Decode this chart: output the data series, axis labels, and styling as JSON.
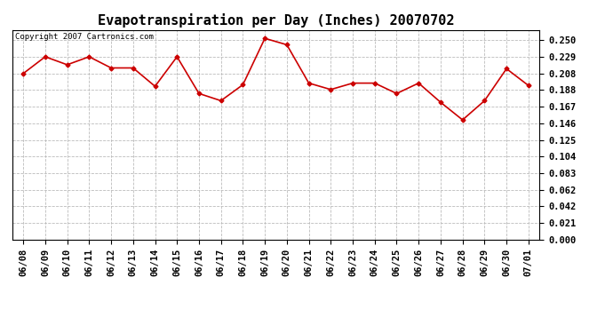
{
  "title": "Evapotranspiration per Day (Inches) 20070702",
  "copyright_text": "Copyright 2007 Cartronics.com",
  "x_labels": [
    "06/08",
    "06/09",
    "06/10",
    "06/11",
    "06/12",
    "06/13",
    "06/14",
    "06/15",
    "06/16",
    "06/17",
    "06/18",
    "06/19",
    "06/20",
    "06/21",
    "06/22",
    "06/23",
    "06/24",
    "06/25",
    "06/26",
    "06/27",
    "06/28",
    "06/29",
    "06/30",
    "07/01"
  ],
  "y_values": [
    0.208,
    0.229,
    0.219,
    0.229,
    0.215,
    0.215,
    0.192,
    0.229,
    0.183,
    0.174,
    0.194,
    0.252,
    0.244,
    0.196,
    0.188,
    0.196,
    0.196,
    0.183,
    0.196,
    0.172,
    0.15,
    0.174,
    0.214,
    0.193
  ],
  "line_color": "#cc0000",
  "marker": "D",
  "marker_size": 2.5,
  "line_width": 1.2,
  "background_color": "#ffffff",
  "grid_color": "#bbbbbb",
  "ylim": [
    0.0,
    0.2625
  ],
  "yticks": [
    0.0,
    0.021,
    0.042,
    0.062,
    0.083,
    0.104,
    0.125,
    0.146,
    0.167,
    0.188,
    0.208,
    0.229,
    0.25
  ],
  "title_fontsize": 11,
  "tick_fontsize": 7.5,
  "copyright_fontsize": 6.5
}
